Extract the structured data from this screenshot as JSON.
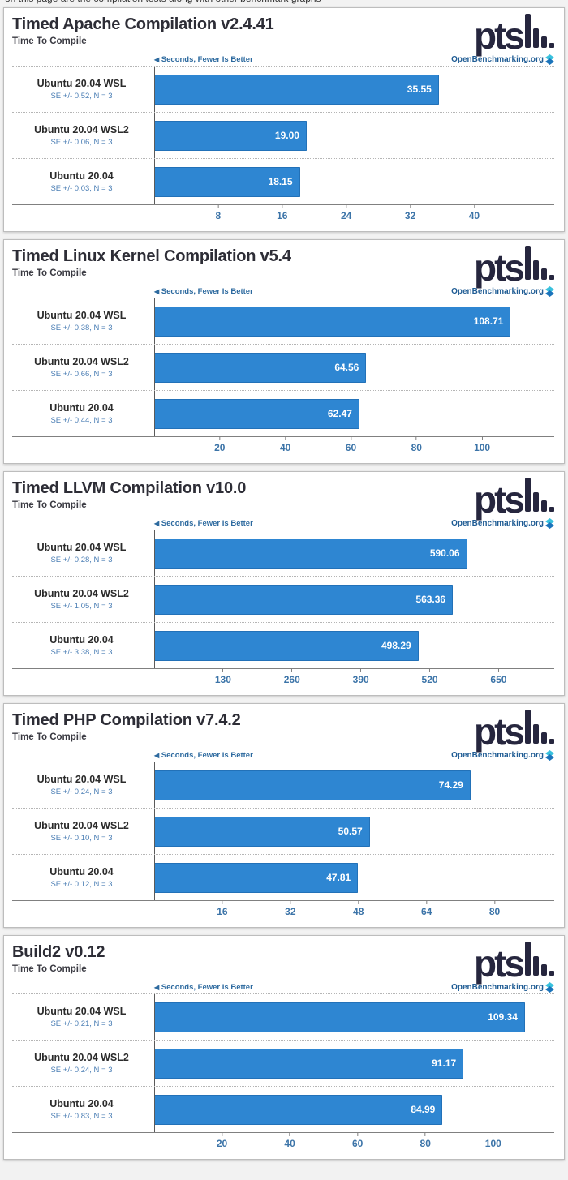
{
  "page": {
    "clipped_text": "on this page are the compilation tests along with other benchmark graphs"
  },
  "branding": {
    "pts_text": "pts",
    "openbenchmarking_label": "OpenBenchmarking.org",
    "direction_label": "Seconds, Fewer Is Better",
    "colors": {
      "bar_blue": "#2e86d2",
      "accent_blue": "#2d6a9f",
      "link_blue": "#1f5c94",
      "logo_navy": "#26263e"
    }
  },
  "chart_data": [
    {
      "type": "bar",
      "title": "Timed Apache Compilation v2.4.41",
      "subtitle": "Time To Compile",
      "unit_label": "Seconds, Fewer Is Better",
      "categories": [
        "Ubuntu 20.04 WSL",
        "Ubuntu 20.04 WSL2",
        "Ubuntu 20.04"
      ],
      "se_labels": [
        "SE +/- 0.52, N = 3",
        "SE +/- 0.06, N = 3",
        "SE +/- 0.03, N = 3"
      ],
      "values": [
        35.55,
        19.0,
        18.15
      ],
      "value_labels": [
        "35.55",
        "19.00",
        "18.15"
      ],
      "ticks": [
        8,
        16,
        24,
        32,
        40
      ],
      "xlim": [
        0,
        50
      ],
      "xlabel": "",
      "ylabel": "",
      "legend": "none",
      "grid": "dotted-horizontal"
    },
    {
      "type": "bar",
      "title": "Timed Linux Kernel Compilation v5.4",
      "subtitle": "Time To Compile",
      "unit_label": "Seconds, Fewer Is Better",
      "categories": [
        "Ubuntu 20.04 WSL",
        "Ubuntu 20.04 WSL2",
        "Ubuntu 20.04"
      ],
      "se_labels": [
        "SE +/- 0.38, N = 3",
        "SE +/- 0.66, N = 3",
        "SE +/- 0.44, N = 3"
      ],
      "values": [
        108.71,
        64.56,
        62.47
      ],
      "value_labels": [
        "108.71",
        "64.56",
        "62.47"
      ],
      "ticks": [
        20,
        40,
        60,
        80,
        100
      ],
      "xlim": [
        0,
        122
      ],
      "xlabel": "",
      "ylabel": "",
      "legend": "none",
      "grid": "dotted-horizontal"
    },
    {
      "type": "bar",
      "title": "Timed LLVM Compilation v10.0",
      "subtitle": "Time To Compile",
      "unit_label": "Seconds, Fewer Is Better",
      "categories": [
        "Ubuntu 20.04 WSL",
        "Ubuntu 20.04 WSL2",
        "Ubuntu 20.04"
      ],
      "se_labels": [
        "SE +/- 0.28, N = 3",
        "SE +/- 1.05, N = 3",
        "SE +/- 3.38, N = 3"
      ],
      "values": [
        590.06,
        563.36,
        498.29
      ],
      "value_labels": [
        "590.06",
        "563.36",
        "498.29"
      ],
      "ticks": [
        130,
        260,
        390,
        520,
        650
      ],
      "xlim": [
        0,
        755
      ],
      "xlabel": "",
      "ylabel": "",
      "legend": "none",
      "grid": "dotted-horizontal"
    },
    {
      "type": "bar",
      "title": "Timed PHP Compilation v7.4.2",
      "subtitle": "Time To Compile",
      "unit_label": "Seconds, Fewer Is Better",
      "categories": [
        "Ubuntu 20.04 WSL",
        "Ubuntu 20.04 WSL2",
        "Ubuntu 20.04"
      ],
      "se_labels": [
        "SE +/- 0.24, N = 3",
        "SE +/- 0.10, N = 3",
        "SE +/- 0.12, N = 3"
      ],
      "values": [
        74.29,
        50.57,
        47.81
      ],
      "value_labels": [
        "74.29",
        "50.57",
        "47.81"
      ],
      "ticks": [
        16,
        32,
        48,
        64,
        80
      ],
      "xlim": [
        0,
        94
      ],
      "xlabel": "",
      "ylabel": "",
      "legend": "none",
      "grid": "dotted-horizontal"
    },
    {
      "type": "bar",
      "title": "Build2 v0.12",
      "subtitle": "Time To Compile",
      "unit_label": "Seconds, Fewer Is Better",
      "categories": [
        "Ubuntu 20.04 WSL",
        "Ubuntu 20.04 WSL2",
        "Ubuntu 20.04"
      ],
      "se_labels": [
        "SE +/- 0.21, N = 3",
        "SE +/- 0.24, N = 3",
        "SE +/- 0.83, N = 3"
      ],
      "values": [
        109.34,
        91.17,
        84.99
      ],
      "value_labels": [
        "109.34",
        "91.17",
        "84.99"
      ],
      "ticks": [
        20,
        40,
        60,
        80,
        100
      ],
      "xlim": [
        0,
        118
      ],
      "xlabel": "",
      "ylabel": "",
      "legend": "none",
      "grid": "dotted-horizontal"
    }
  ]
}
